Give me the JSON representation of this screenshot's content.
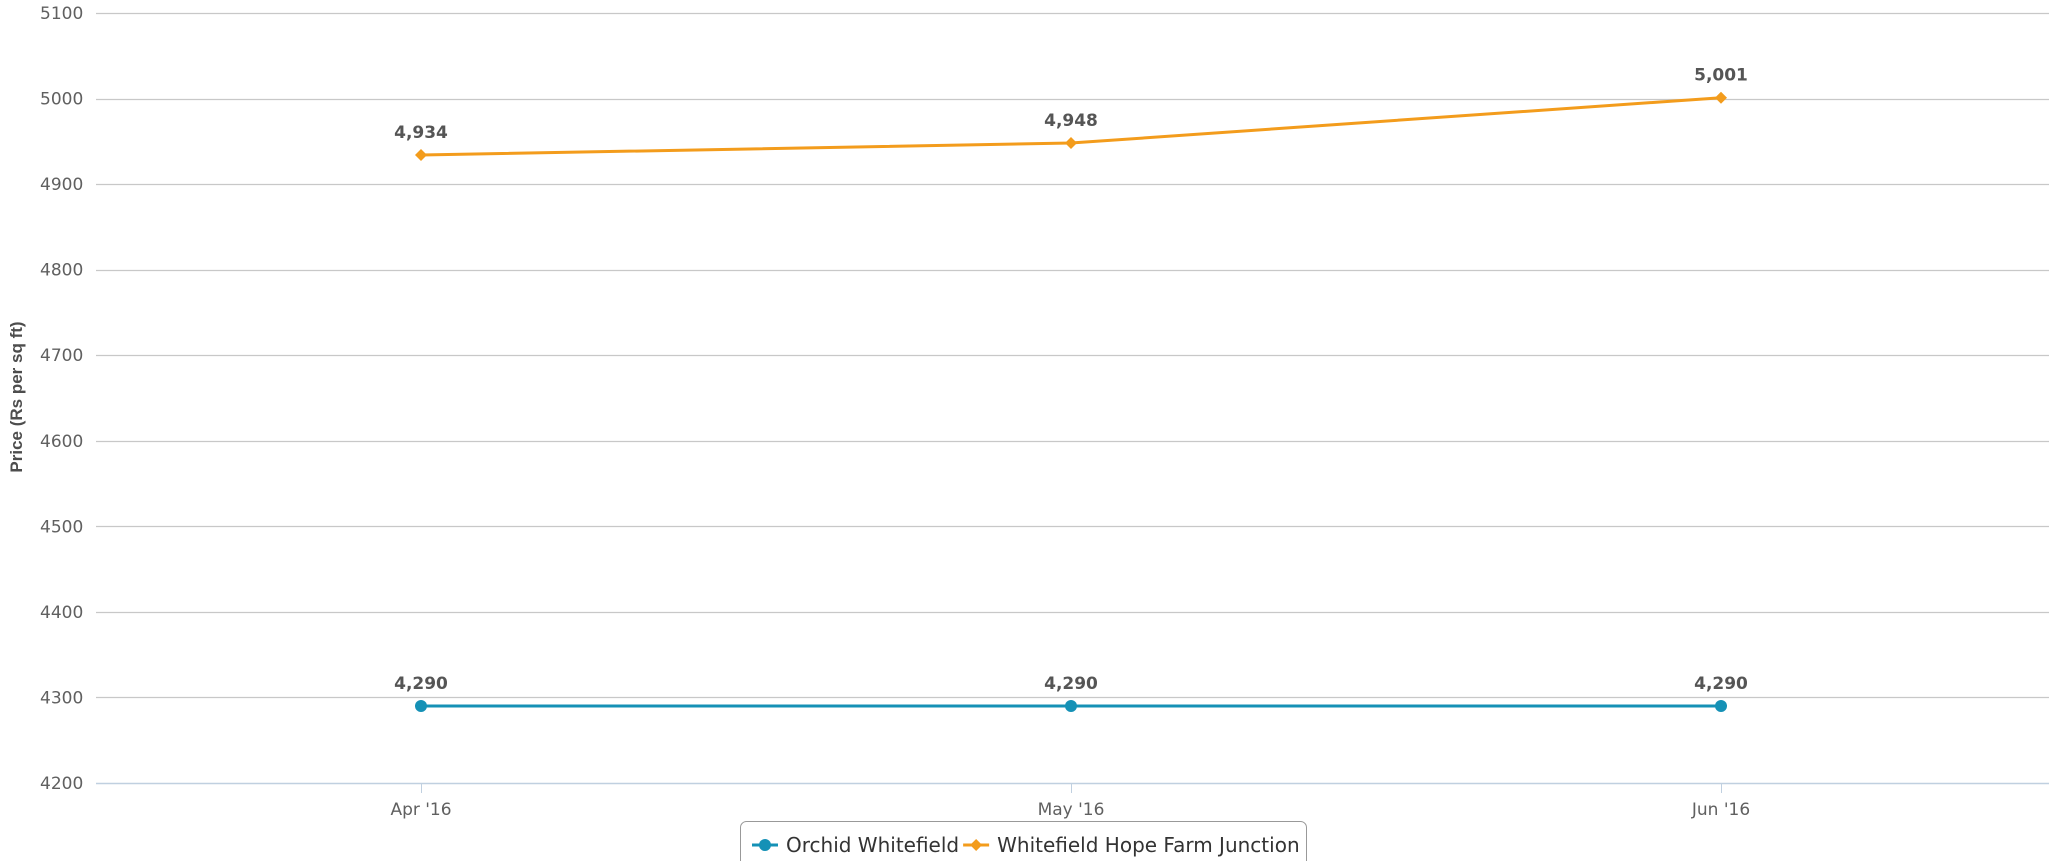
{
  "chart_data": {
    "type": "line",
    "title": "",
    "xlabel": "",
    "ylabel": "Price (Rs per sq ft)",
    "categories": [
      "Apr '16",
      "May '16",
      "Jun '16"
    ],
    "ylim": [
      4200,
      5100
    ],
    "yticks": [
      4200,
      4300,
      4400,
      4500,
      4600,
      4700,
      4800,
      4900,
      5000,
      5100
    ],
    "grid": true,
    "legend_position": "bottom-center",
    "series": [
      {
        "name": "Orchid Whitefield",
        "values": [
          4290,
          4290,
          4290
        ],
        "labels": [
          "4,290",
          "4,290",
          "4,290"
        ],
        "color": "#1591b6",
        "marker": "circle"
      },
      {
        "name": "Whitefield Hope Farm Junction",
        "values": [
          4934,
          4948,
          5001
        ],
        "labels": [
          "4,934",
          "4,948",
          "5,001"
        ],
        "color": "#f39c1c",
        "marker": "diamond"
      }
    ]
  }
}
